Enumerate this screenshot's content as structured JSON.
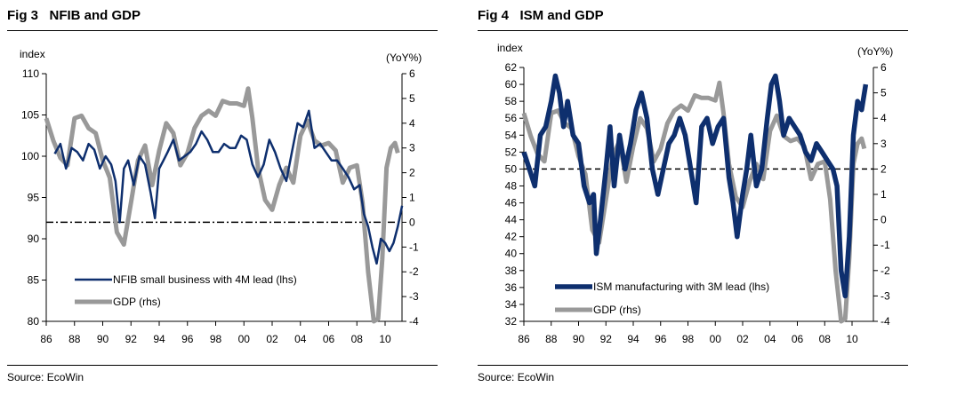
{
  "figures": [
    {
      "title": "Fig 3   NFIB and GDP",
      "source": "Source: EcoWin",
      "colors": {
        "lhs": "#0e2f6e",
        "rhs": "#999999"
      },
      "chart_data": {
        "type": "line",
        "title": "NFIB and GDP",
        "ylabel_left": "index",
        "ylabel_right": "(YoY%)",
        "x_ticks": [
          "86",
          "88",
          "90",
          "92",
          "94",
          "96",
          "98",
          "00",
          "02",
          "04",
          "06",
          "08",
          "10"
        ],
        "x_range": [
          1986,
          2011.3
        ],
        "ylim_left": [
          80,
          110
        ],
        "yticks_left": [
          80,
          85,
          90,
          95,
          100,
          105,
          110
        ],
        "ylim_right": [
          -4,
          6
        ],
        "yticks_right": [
          -4,
          -3,
          -2,
          -1,
          0,
          1,
          2,
          3,
          4,
          5,
          6
        ],
        "reference_line": {
          "axis": "right",
          "value": 0,
          "style": "dash-dot"
        },
        "legend_position": "bottom-left",
        "series": [
          {
            "name": "NFIB small business with 4M lead (lhs)",
            "axis": "left",
            "x": [
              1986.6,
              1987.0,
              1987.4,
              1987.8,
              1988.2,
              1988.6,
              1989.0,
              1989.4,
              1989.8,
              1990.2,
              1990.6,
              1990.9,
              1991.2,
              1991.5,
              1991.8,
              1992.2,
              1992.6,
              1993.0,
              1993.4,
              1993.7,
              1994.0,
              1994.3,
              1994.6,
              1995.0,
              1995.4,
              1995.8,
              1996.2,
              1996.6,
              1997.0,
              1997.4,
              1997.8,
              1998.2,
              1998.6,
              1999.0,
              1999.4,
              1999.8,
              2000.2,
              2000.6,
              2001.0,
              2001.4,
              2001.8,
              2002.2,
              2002.6,
              2003.0,
              2003.4,
              2003.8,
              2004.2,
              2004.6,
              2005.0,
              2005.4,
              2005.8,
              2006.2,
              2006.6,
              2007.0,
              2007.4,
              2007.8,
              2008.2,
              2008.5,
              2008.8,
              2009.1,
              2009.4,
              2009.7,
              2010.0,
              2010.3,
              2010.6,
              2010.9,
              2011.2
            ],
            "values": [
              100.3,
              101.5,
              98.5,
              101.0,
              100.5,
              99.5,
              101.5,
              100.8,
              98.5,
              100.0,
              99.0,
              97.0,
              92.0,
              98.5,
              99.5,
              96.5,
              100.0,
              99.0,
              95.5,
              92.5,
              98.5,
              99.5,
              100.5,
              102.0,
              99.5,
              100.0,
              100.5,
              101.5,
              103.0,
              102.0,
              100.5,
              100.5,
              101.5,
              101.0,
              101.0,
              102.5,
              102.0,
              99.0,
              97.5,
              99.0,
              102.0,
              100.5,
              98.5,
              97.0,
              100.5,
              104.0,
              103.5,
              105.5,
              101.0,
              101.5,
              100.5,
              99.5,
              99.5,
              98.5,
              97.5,
              96.0,
              96.5,
              93.0,
              91.5,
              89.0,
              87.0,
              90.0,
              89.5,
              88.5,
              89.5,
              91.5,
              94.0
            ]
          },
          {
            "name": "GDP (rhs)",
            "axis": "right",
            "x": [
              1986.0,
              1986.5,
              1987.0,
              1987.5,
              1988.0,
              1988.5,
              1989.0,
              1989.5,
              1990.0,
              1990.5,
              1991.0,
              1991.5,
              1992.0,
              1992.5,
              1993.0,
              1993.5,
              1994.0,
              1994.5,
              1995.0,
              1995.5,
              1996.0,
              1996.5,
              1997.0,
              1997.5,
              1998.0,
              1998.5,
              1999.0,
              1999.5,
              2000.0,
              2000.3,
              2000.6,
              2001.0,
              2001.5,
              2002.0,
              2002.5,
              2003.0,
              2003.5,
              2004.0,
              2004.5,
              2005.0,
              2005.5,
              2006.0,
              2006.5,
              2007.0,
              2007.5,
              2008.0,
              2008.4,
              2008.8,
              2009.2,
              2009.5,
              2009.8,
              2010.1,
              2010.4,
              2010.7,
              2010.9
            ],
            "values": [
              4.2,
              3.3,
              2.6,
              2.3,
              4.2,
              4.3,
              3.8,
              3.6,
              2.5,
              1.8,
              -0.4,
              -0.9,
              0.8,
              2.5,
              3.1,
              1.5,
              2.9,
              4.0,
              3.6,
              2.3,
              2.8,
              3.8,
              4.3,
              4.5,
              4.3,
              4.9,
              4.8,
              4.8,
              4.7,
              5.4,
              4.2,
              2.2,
              0.9,
              0.5,
              1.5,
              2.2,
              1.6,
              3.5,
              4.1,
              3.3,
              3.1,
              3.2,
              2.9,
              1.6,
              2.2,
              2.3,
              0.8,
              -2.0,
              -4.0,
              -3.9,
              -1.5,
              2.2,
              3.0,
              3.2,
              2.8
            ]
          }
        ]
      }
    },
    {
      "title": "Fig 4   ISM and GDP",
      "source": "Source: EcoWin",
      "colors": {
        "lhs": "#0e2f6e",
        "rhs": "#999999"
      },
      "chart_data": {
        "type": "line",
        "title": "ISM and GDP",
        "ylabel_left": "index",
        "ylabel_right": "(YoY%)",
        "x_ticks": [
          "86",
          "88",
          "90",
          "92",
          "94",
          "96",
          "98",
          "00",
          "02",
          "04",
          "06",
          "08",
          "10"
        ],
        "x_range": [
          1986,
          2011.3
        ],
        "ylim_left": [
          32,
          62
        ],
        "yticks_left": [
          32,
          34,
          36,
          38,
          40,
          42,
          44,
          46,
          48,
          50,
          52,
          54,
          56,
          58,
          60,
          62
        ],
        "ylim_right": [
          -4,
          6
        ],
        "yticks_right": [
          -4,
          -3,
          -2,
          -1,
          0,
          1,
          2,
          3,
          4,
          5,
          6
        ],
        "reference_line": {
          "axis": "left",
          "value": 50,
          "style": "dash"
        },
        "legend_position": "bottom-left",
        "series": [
          {
            "name": "ISM manufacturing with 3M lead (lhs)",
            "axis": "left",
            "x": [
              1986.0,
              1986.4,
              1986.8,
              1987.2,
              1987.6,
              1988.0,
              1988.3,
              1988.6,
              1988.9,
              1989.2,
              1989.6,
              1990.0,
              1990.4,
              1990.8,
              1991.1,
              1991.3,
              1991.6,
              1992.0,
              1992.3,
              1992.6,
              1993.0,
              1993.4,
              1993.8,
              1994.2,
              1994.6,
              1995.0,
              1995.4,
              1995.8,
              1996.2,
              1996.6,
              1997.0,
              1997.4,
              1997.8,
              1998.2,
              1998.6,
              1999.0,
              1999.4,
              1999.8,
              2000.2,
              2000.6,
              2001.0,
              2001.3,
              2001.6,
              2002.0,
              2002.3,
              2002.6,
              2003.0,
              2003.4,
              2003.8,
              2004.1,
              2004.4,
              2004.7,
              2005.0,
              2005.4,
              2005.8,
              2006.2,
              2006.6,
              2007.0,
              2007.4,
              2007.8,
              2008.2,
              2008.6,
              2008.9,
              2009.2,
              2009.5,
              2009.8,
              2010.1,
              2010.4,
              2010.7,
              2011.0
            ],
            "values": [
              52,
              50,
              48,
              54,
              55,
              58,
              61,
              59,
              55,
              58,
              54,
              53,
              48,
              46,
              47,
              40,
              44,
              50,
              55,
              48,
              54,
              50,
              53,
              57,
              59,
              56,
              50,
              47,
              50,
              53,
              54,
              56,
              54,
              50,
              46,
              55,
              56,
              53,
              55,
              56,
              49,
              46,
              42,
              47,
              50,
              54,
              48,
              50,
              56,
              60,
              61,
              58,
              54,
              56,
              55,
              54,
              52,
              51,
              53,
              52,
              51,
              50,
              48,
              38,
              35,
              42,
              54,
              58,
              57,
              60
            ]
          },
          {
            "name": "GDP (rhs)",
            "axis": "right",
            "x": [
              1986.0,
              1986.5,
              1987.0,
              1987.5,
              1988.0,
              1988.5,
              1989.0,
              1989.5,
              1990.0,
              1990.5,
              1991.0,
              1991.5,
              1992.0,
              1992.5,
              1993.0,
              1993.5,
              1994.0,
              1994.5,
              1995.0,
              1995.5,
              1996.0,
              1996.5,
              1997.0,
              1997.5,
              1998.0,
              1998.5,
              1999.0,
              1999.5,
              2000.0,
              2000.3,
              2000.6,
              2001.0,
              2001.5,
              2002.0,
              2002.5,
              2003.0,
              2003.5,
              2004.0,
              2004.5,
              2005.0,
              2005.5,
              2006.0,
              2006.5,
              2007.0,
              2007.5,
              2008.0,
              2008.4,
              2008.8,
              2009.2,
              2009.5,
              2009.8,
              2010.1,
              2010.4,
              2010.7,
              2010.9
            ],
            "values": [
              4.2,
              3.3,
              2.6,
              2.3,
              4.2,
              4.3,
              3.8,
              3.6,
              2.5,
              1.8,
              -0.4,
              -0.9,
              0.8,
              2.5,
              3.1,
              1.5,
              2.9,
              4.0,
              3.6,
              2.3,
              2.8,
              3.8,
              4.3,
              4.5,
              4.3,
              4.9,
              4.8,
              4.8,
              4.7,
              5.4,
              4.2,
              2.2,
              0.9,
              0.5,
              1.5,
              2.2,
              1.6,
              3.5,
              4.1,
              3.3,
              3.1,
              3.2,
              2.9,
              1.6,
              2.2,
              2.3,
              0.8,
              -2.0,
              -4.0,
              -3.9,
              -1.5,
              2.2,
              3.0,
              3.2,
              2.8
            ]
          }
        ]
      }
    }
  ]
}
